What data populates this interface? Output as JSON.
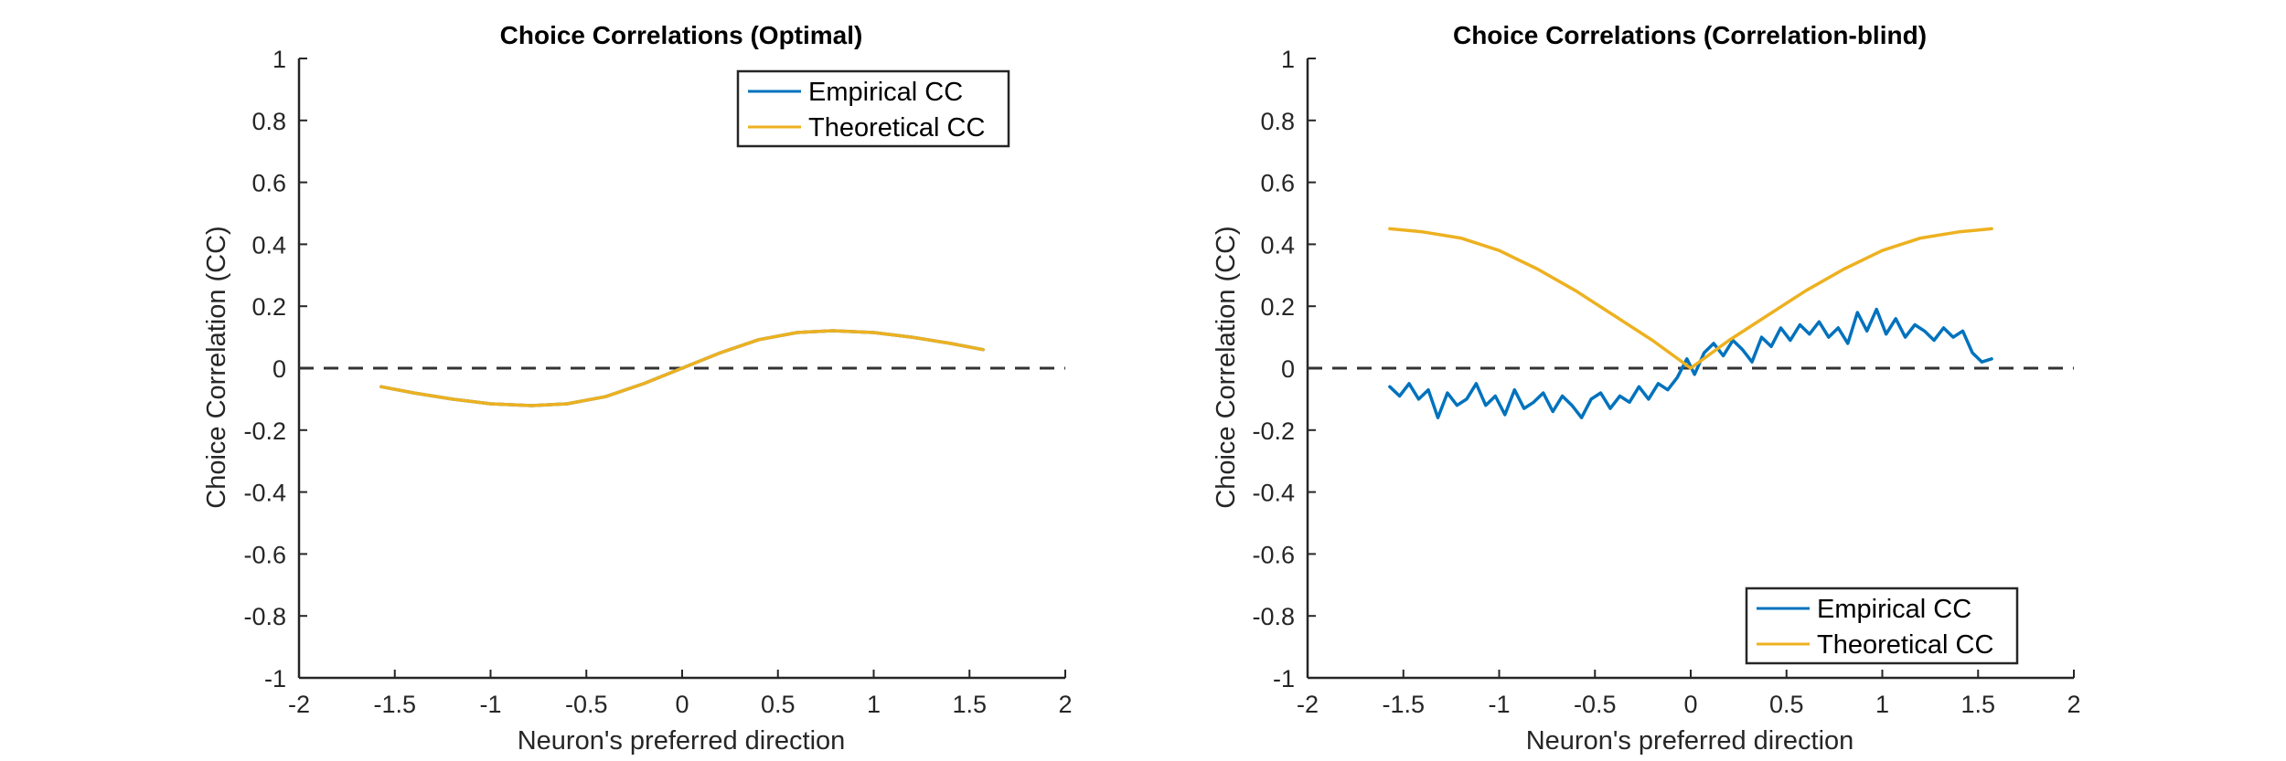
{
  "chart_data": [
    {
      "type": "line",
      "title": "Choice Correlations (Optimal)",
      "xlabel": "Neuron's preferred direction",
      "ylabel": "Choice Correlation (CC)",
      "xlim": [
        -2,
        2
      ],
      "ylim": [
        -1,
        1
      ],
      "xticks": [
        "-2",
        "-1.5",
        "-1",
        "-0.5",
        "0",
        "0.5",
        "1",
        "1.5",
        "2"
      ],
      "yticks": [
        "-1",
        "-0.8",
        "-0.6",
        "-0.4",
        "-0.2",
        "0",
        "0.2",
        "0.4",
        "0.6",
        "0.8",
        "1"
      ],
      "grid": false,
      "legend_position": "top-right",
      "reference_line": {
        "y": 0,
        "style": "dashed",
        "color": "#333333"
      },
      "series": [
        {
          "name": "Empirical CC",
          "color": "#0072BD",
          "x": [
            -1.571,
            -1.4,
            -1.2,
            -1.0,
            -0.785,
            -0.6,
            -0.4,
            -0.2,
            0.0,
            0.2,
            0.4,
            0.6,
            0.785,
            1.0,
            1.2,
            1.4,
            1.571
          ],
          "y": [
            -0.06,
            -0.08,
            -0.1,
            -0.115,
            -0.121,
            -0.115,
            -0.092,
            -0.05,
            0.0,
            0.05,
            0.092,
            0.115,
            0.121,
            0.115,
            0.1,
            0.08,
            0.06
          ]
        },
        {
          "name": "Theoretical CC",
          "color": "#EDB120",
          "x": [
            -1.571,
            -1.4,
            -1.2,
            -1.0,
            -0.785,
            -0.6,
            -0.4,
            -0.2,
            0.0,
            0.2,
            0.4,
            0.6,
            0.785,
            1.0,
            1.2,
            1.4,
            1.571
          ],
          "y": [
            -0.06,
            -0.08,
            -0.1,
            -0.115,
            -0.121,
            -0.115,
            -0.092,
            -0.05,
            0.0,
            0.05,
            0.092,
            0.115,
            0.121,
            0.115,
            0.1,
            0.08,
            0.06
          ]
        }
      ]
    },
    {
      "type": "line",
      "title": "Choice Correlations (Correlation-blind)",
      "xlabel": "Neuron's preferred direction",
      "ylabel": "Choice Correlation (CC)",
      "xlim": [
        -2,
        2
      ],
      "ylim": [
        -1,
        1
      ],
      "xticks": [
        "-2",
        "-1.5",
        "-1",
        "-0.5",
        "0",
        "0.5",
        "1",
        "1.5",
        "2"
      ],
      "yticks": [
        "-1",
        "-0.8",
        "-0.6",
        "-0.4",
        "-0.2",
        "0",
        "0.2",
        "0.4",
        "0.6",
        "0.8",
        "1"
      ],
      "grid": false,
      "legend_position": "bottom-right",
      "reference_line": {
        "y": 0,
        "style": "dashed",
        "color": "#333333"
      },
      "series": [
        {
          "name": "Empirical CC",
          "color": "#0072BD",
          "x": [
            -1.571,
            -1.52,
            -1.47,
            -1.42,
            -1.37,
            -1.32,
            -1.27,
            -1.22,
            -1.17,
            -1.12,
            -1.07,
            -1.02,
            -0.97,
            -0.92,
            -0.87,
            -0.82,
            -0.77,
            -0.72,
            -0.67,
            -0.62,
            -0.57,
            -0.52,
            -0.47,
            -0.42,
            -0.37,
            -0.32,
            -0.27,
            -0.22,
            -0.17,
            -0.12,
            -0.07,
            -0.02,
            0.02,
            0.07,
            0.12,
            0.17,
            0.22,
            0.27,
            0.32,
            0.37,
            0.42,
            0.47,
            0.52,
            0.57,
            0.62,
            0.67,
            0.72,
            0.77,
            0.82,
            0.87,
            0.92,
            0.97,
            1.02,
            1.07,
            1.12,
            1.17,
            1.22,
            1.27,
            1.32,
            1.37,
            1.42,
            1.47,
            1.52,
            1.571
          ],
          "y": [
            -0.06,
            -0.09,
            -0.05,
            -0.1,
            -0.07,
            -0.16,
            -0.08,
            -0.12,
            -0.1,
            -0.05,
            -0.12,
            -0.09,
            -0.15,
            -0.07,
            -0.13,
            -0.11,
            -0.08,
            -0.14,
            -0.09,
            -0.12,
            -0.16,
            -0.1,
            -0.08,
            -0.13,
            -0.09,
            -0.11,
            -0.06,
            -0.1,
            -0.05,
            -0.07,
            -0.03,
            0.03,
            -0.02,
            0.05,
            0.08,
            0.04,
            0.09,
            0.06,
            0.02,
            0.1,
            0.07,
            0.13,
            0.09,
            0.14,
            0.11,
            0.15,
            0.1,
            0.13,
            0.08,
            0.18,
            0.12,
            0.19,
            0.11,
            0.16,
            0.1,
            0.14,
            0.12,
            0.09,
            0.13,
            0.1,
            0.12,
            0.05,
            0.02,
            0.03
          ]
        },
        {
          "name": "Theoretical CC",
          "color": "#EDB120",
          "x": [
            -1.571,
            -1.4,
            -1.2,
            -1.0,
            -0.8,
            -0.6,
            -0.4,
            -0.2,
            0.0,
            0.2,
            0.4,
            0.6,
            0.8,
            1.0,
            1.2,
            1.4,
            1.571
          ],
          "y": [
            0.45,
            0.44,
            0.42,
            0.38,
            0.32,
            0.25,
            0.17,
            0.09,
            0.0,
            0.09,
            0.17,
            0.25,
            0.32,
            0.38,
            0.42,
            0.44,
            0.45
          ]
        }
      ]
    }
  ]
}
